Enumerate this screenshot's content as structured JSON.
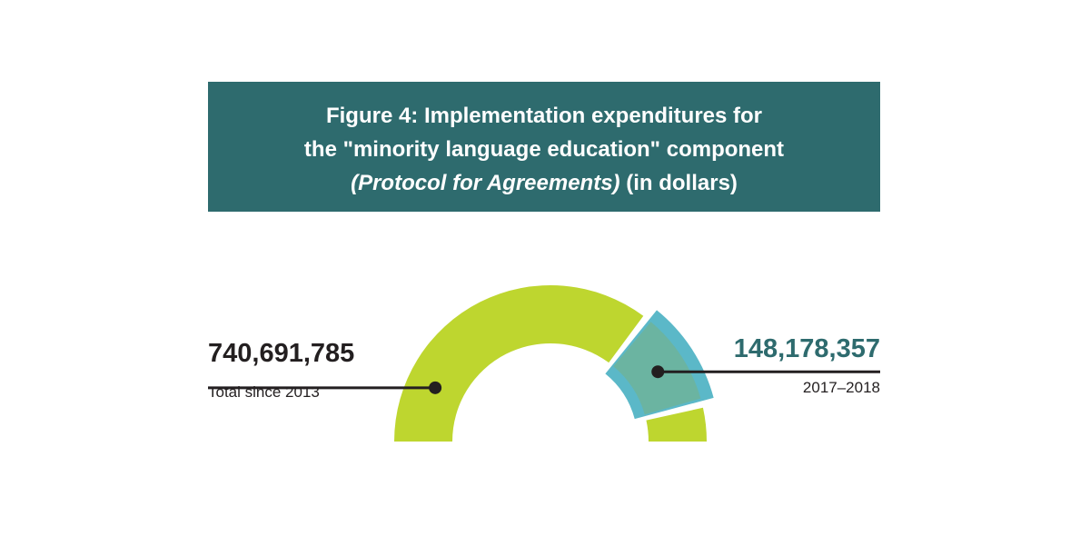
{
  "title": {
    "line1": "Figure 4: Implementation expenditures for",
    "line2": "the \"minority language education\" component",
    "line3_italic": "(Protocol for Agreements)",
    "line3_rest": " (in dollars)"
  },
  "colors": {
    "title_bg": "#2e6b6e",
    "title_text": "#ffffff",
    "total_arc": "#bed62f",
    "period_arc": "#5bb8c8",
    "overlap": "#6fb39a",
    "leader_line": "#231f20",
    "period_value_text": "#2e6b6e"
  },
  "chart_data": {
    "type": "gauge",
    "segments": [
      {
        "label": "Total since 2013",
        "value": 740691785
      },
      {
        "label": "2017–2018",
        "value": 148178357
      }
    ],
    "annotations": {
      "total_value": "740,691,785",
      "total_label": "Total since 2013",
      "period_value": "148,178,357",
      "period_label": "2017–2018"
    }
  }
}
